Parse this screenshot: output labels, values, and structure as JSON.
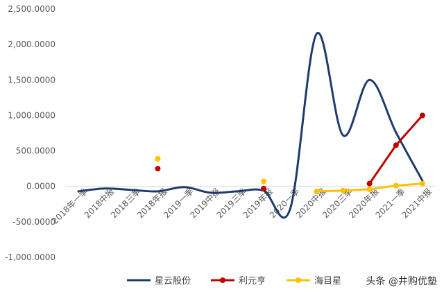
{
  "chart_data": {
    "type": "line",
    "categories": [
      "2018年一季",
      "2018中报",
      "2018三季",
      "2018年报",
      "2019一季",
      "2019中报",
      "2019三季",
      "2019年报",
      "2020一季",
      "2020中报",
      "2020三季",
      "2020年报",
      "2021一季",
      "2021中报"
    ],
    "ylim": [
      -1000,
      2500
    ],
    "yticks": [
      "2,500.0000",
      "2,000.0000",
      "1,500.0000",
      "1,000.0000",
      "500.0000",
      "0.0000",
      "-500.0000",
      "-1,000.0000"
    ],
    "grid": false,
    "legend_position": "bottom",
    "series": [
      {
        "name": "星云股份",
        "color": "#1f3a6e",
        "smooth": true,
        "markers": false,
        "values": [
          -70,
          -30,
          -50,
          -70,
          -10,
          -90,
          -70,
          -60,
          -320,
          2150,
          720,
          1500,
          760,
          80
        ]
      },
      {
        "name": "利元亨",
        "color": "#c00000",
        "smooth": false,
        "markers": true,
        "values": [
          null,
          null,
          null,
          250,
          null,
          null,
          null,
          -30,
          null,
          null,
          null,
          40,
          580,
          1000
        ]
      },
      {
        "name": "海目星",
        "color": "#ffc000",
        "smooth": false,
        "markers": true,
        "values": [
          null,
          null,
          null,
          390,
          null,
          null,
          null,
          70,
          null,
          -70,
          -60,
          -40,
          10,
          40
        ]
      }
    ]
  },
  "watermark": "头条 @井购优塾"
}
